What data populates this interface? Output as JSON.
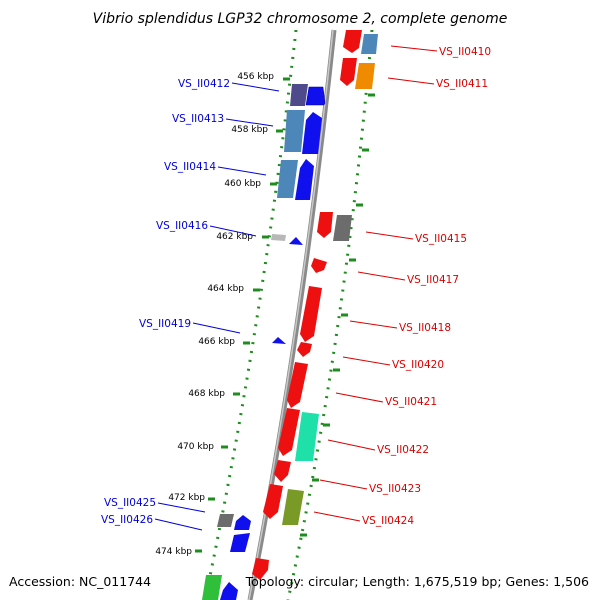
{
  "title": "Vibrio splendidus LGP32 chromosome 2, complete genome",
  "accession": "Accession: NC_011744",
  "topology": "Topology: circular; Length: 1,675,519 bp; Genes: 1,506",
  "colors": {
    "forward_label": "#0000dd",
    "reverse_label": "#dd0000",
    "ruler_dots": "#1e8c1e",
    "backbone": "#8a8a8a"
  },
  "kbp_ticks": [
    "456 kbp",
    "458 kbp",
    "460 kbp",
    "462 kbp",
    "464 kbp",
    "466 kbp",
    "468 kbp",
    "470 kbp",
    "472 kbp",
    "474 kbp"
  ],
  "forward_genes": [
    "VS_II0412",
    "VS_II0413",
    "VS_II0414",
    "VS_II0416",
    "VS_II0419",
    "VS_II0425",
    "VS_II0426"
  ],
  "reverse_genes": [
    "VS_II0410",
    "VS_II0411",
    "VS_II0415",
    "VS_II0417",
    "VS_II0418",
    "VS_II0420",
    "VS_II0421",
    "VS_II0422",
    "VS_II0423",
    "VS_II0424"
  ]
}
